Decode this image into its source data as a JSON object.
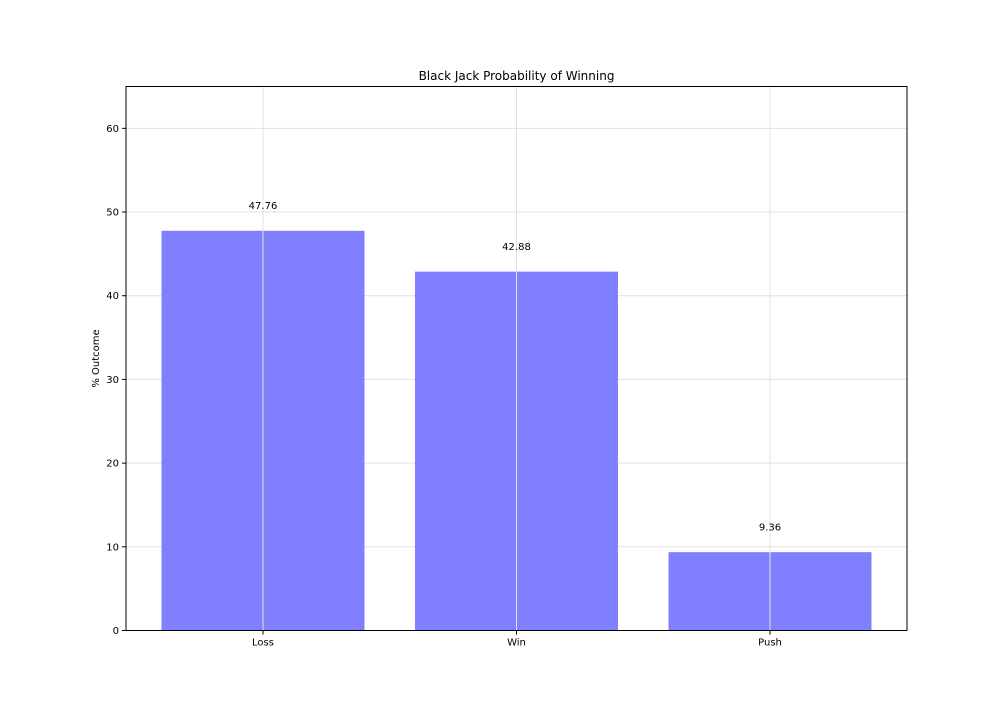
{
  "chart_data": {
    "type": "bar",
    "title": "Black Jack Probability of Winning",
    "xlabel": "",
    "ylabel": "% Outcome",
    "categories": [
      "Loss",
      "Win",
      "Push"
    ],
    "values": [
      47.76,
      42.88,
      9.36
    ],
    "data_labels": [
      "47.76",
      "42.88",
      "9.36"
    ],
    "ylim": [
      0,
      65
    ],
    "yticks": [
      0,
      10,
      20,
      30,
      40,
      50,
      60
    ],
    "grid": true,
    "legend": "none",
    "bar_color": "#8080ff",
    "grid_color": "#e0e0e0"
  }
}
